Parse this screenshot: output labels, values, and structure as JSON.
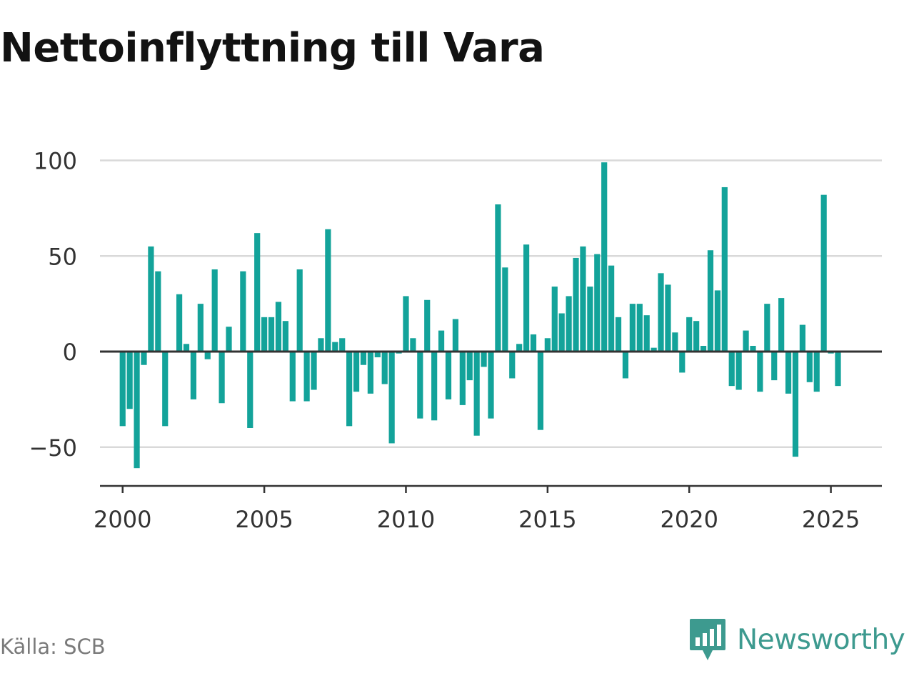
{
  "title": "Nettoinflyttning till Vara",
  "source": "Källa: SCB",
  "brand": {
    "name": "Newsworthy",
    "icon": "bar-chart-speech-icon",
    "color": "#3d9a8f"
  },
  "colors": {
    "bar": "#13a39a",
    "grid": "#d9d9d9",
    "axis": "#333333"
  },
  "chart_data": {
    "type": "bar",
    "title": "Nettoinflyttning till Vara",
    "xlabel": "",
    "ylabel": "",
    "ylim": [
      -70,
      100
    ],
    "xlim": [
      1999.2,
      2026.8
    ],
    "yticks": [
      100,
      50,
      0,
      -50
    ],
    "ytick_labels": [
      "100",
      "50",
      "0",
      "−50"
    ],
    "xticks": [
      2000,
      2005,
      2010,
      2015,
      2020,
      2025
    ],
    "xtick_labels": [
      "2000",
      "2005",
      "2010",
      "2015",
      "2020",
      "2025"
    ],
    "grid": "horizontal",
    "legend": "none",
    "x": [
      "2000-Q1",
      "2000-Q2",
      "2000-Q3",
      "2000-Q4",
      "2001-Q1",
      "2001-Q2",
      "2001-Q3",
      "2001-Q4",
      "2002-Q1",
      "2002-Q2",
      "2002-Q3",
      "2002-Q4",
      "2003-Q1",
      "2003-Q2",
      "2003-Q3",
      "2003-Q4",
      "2004-Q1",
      "2004-Q2",
      "2004-Q3",
      "2004-Q4",
      "2005-Q1",
      "2005-Q2",
      "2005-Q3",
      "2005-Q4",
      "2006-Q1",
      "2006-Q2",
      "2006-Q3",
      "2006-Q4",
      "2007-Q1",
      "2007-Q2",
      "2007-Q3",
      "2007-Q4",
      "2008-Q1",
      "2008-Q2",
      "2008-Q3",
      "2008-Q4",
      "2009-Q1",
      "2009-Q2",
      "2009-Q3",
      "2009-Q4",
      "2010-Q1",
      "2010-Q2",
      "2010-Q3",
      "2010-Q4",
      "2011-Q1",
      "2011-Q2",
      "2011-Q3",
      "2011-Q4",
      "2012-Q1",
      "2012-Q2",
      "2012-Q3",
      "2012-Q4",
      "2013-Q1",
      "2013-Q2",
      "2013-Q3",
      "2013-Q4",
      "2014-Q1",
      "2014-Q2",
      "2014-Q3",
      "2014-Q4",
      "2015-Q1",
      "2015-Q2",
      "2015-Q3",
      "2015-Q4",
      "2016-Q1",
      "2016-Q2",
      "2016-Q3",
      "2016-Q4",
      "2017-Q1",
      "2017-Q2",
      "2017-Q3",
      "2017-Q4",
      "2018-Q1",
      "2018-Q2",
      "2018-Q3",
      "2018-Q4",
      "2019-Q1",
      "2019-Q2",
      "2019-Q3",
      "2019-Q4",
      "2020-Q1",
      "2020-Q2",
      "2020-Q3",
      "2020-Q4",
      "2021-Q1",
      "2021-Q2",
      "2021-Q3",
      "2021-Q4",
      "2022-Q1",
      "2022-Q2",
      "2022-Q3",
      "2022-Q4",
      "2023-Q1",
      "2023-Q2",
      "2023-Q3",
      "2023-Q4",
      "2024-Q1",
      "2024-Q2",
      "2024-Q3",
      "2024-Q4",
      "2025-Q1",
      "2025-Q2"
    ],
    "x_numeric": [
      2000.0,
      2000.25,
      2000.5,
      2000.75,
      2001.0,
      2001.25,
      2001.5,
      2001.75,
      2002.0,
      2002.25,
      2002.5,
      2002.75,
      2003.0,
      2003.25,
      2003.5,
      2003.75,
      2004.0,
      2004.25,
      2004.5,
      2004.75,
      2005.0,
      2005.25,
      2005.5,
      2005.75,
      2006.0,
      2006.25,
      2006.5,
      2006.75,
      2007.0,
      2007.25,
      2007.5,
      2007.75,
      2008.0,
      2008.25,
      2008.5,
      2008.75,
      2009.0,
      2009.25,
      2009.5,
      2009.75,
      2010.0,
      2010.25,
      2010.5,
      2010.75,
      2011.0,
      2011.25,
      2011.5,
      2011.75,
      2012.0,
      2012.25,
      2012.5,
      2012.75,
      2013.0,
      2013.25,
      2013.5,
      2013.75,
      2014.0,
      2014.25,
      2014.5,
      2014.75,
      2015.0,
      2015.25,
      2015.5,
      2015.75,
      2016.0,
      2016.25,
      2016.5,
      2016.75,
      2017.0,
      2017.25,
      2017.5,
      2017.75,
      2018.0,
      2018.25,
      2018.5,
      2018.75,
      2019.0,
      2019.25,
      2019.5,
      2019.75,
      2020.0,
      2020.25,
      2020.5,
      2020.75,
      2021.0,
      2021.25,
      2021.5,
      2021.75,
      2022.0,
      2022.25,
      2022.5,
      2022.75,
      2023.0,
      2023.25,
      2023.5,
      2023.75,
      2024.0,
      2024.25,
      2024.5,
      2024.75,
      2025.0,
      2025.25
    ],
    "values": [
      -39,
      -30,
      -61,
      -7,
      55,
      42,
      -39,
      0,
      30,
      4,
      -25,
      25,
      -4,
      43,
      -27,
      13,
      0,
      42,
      -40,
      62,
      18,
      18,
      26,
      16,
      -26,
      43,
      -26,
      -20,
      7,
      64,
      5,
      7,
      -39,
      -21,
      -7,
      -22,
      -3,
      -17,
      -48,
      -1,
      29,
      7,
      -35,
      27,
      -36,
      11,
      -25,
      17,
      -28,
      -15,
      -44,
      -8,
      -35,
      77,
      44,
      -14,
      4,
      56,
      9,
      -41,
      7,
      34,
      20,
      29,
      49,
      55,
      34,
      51,
      99,
      45,
      18,
      -14,
      25,
      25,
      19,
      2,
      41,
      35,
      10,
      -11,
      18,
      16,
      3,
      53,
      32,
      86,
      -18,
      -20,
      11,
      3,
      -21,
      25,
      -15,
      28,
      -22,
      -55,
      14,
      -16,
      -21,
      82,
      -1,
      -18
    ]
  }
}
